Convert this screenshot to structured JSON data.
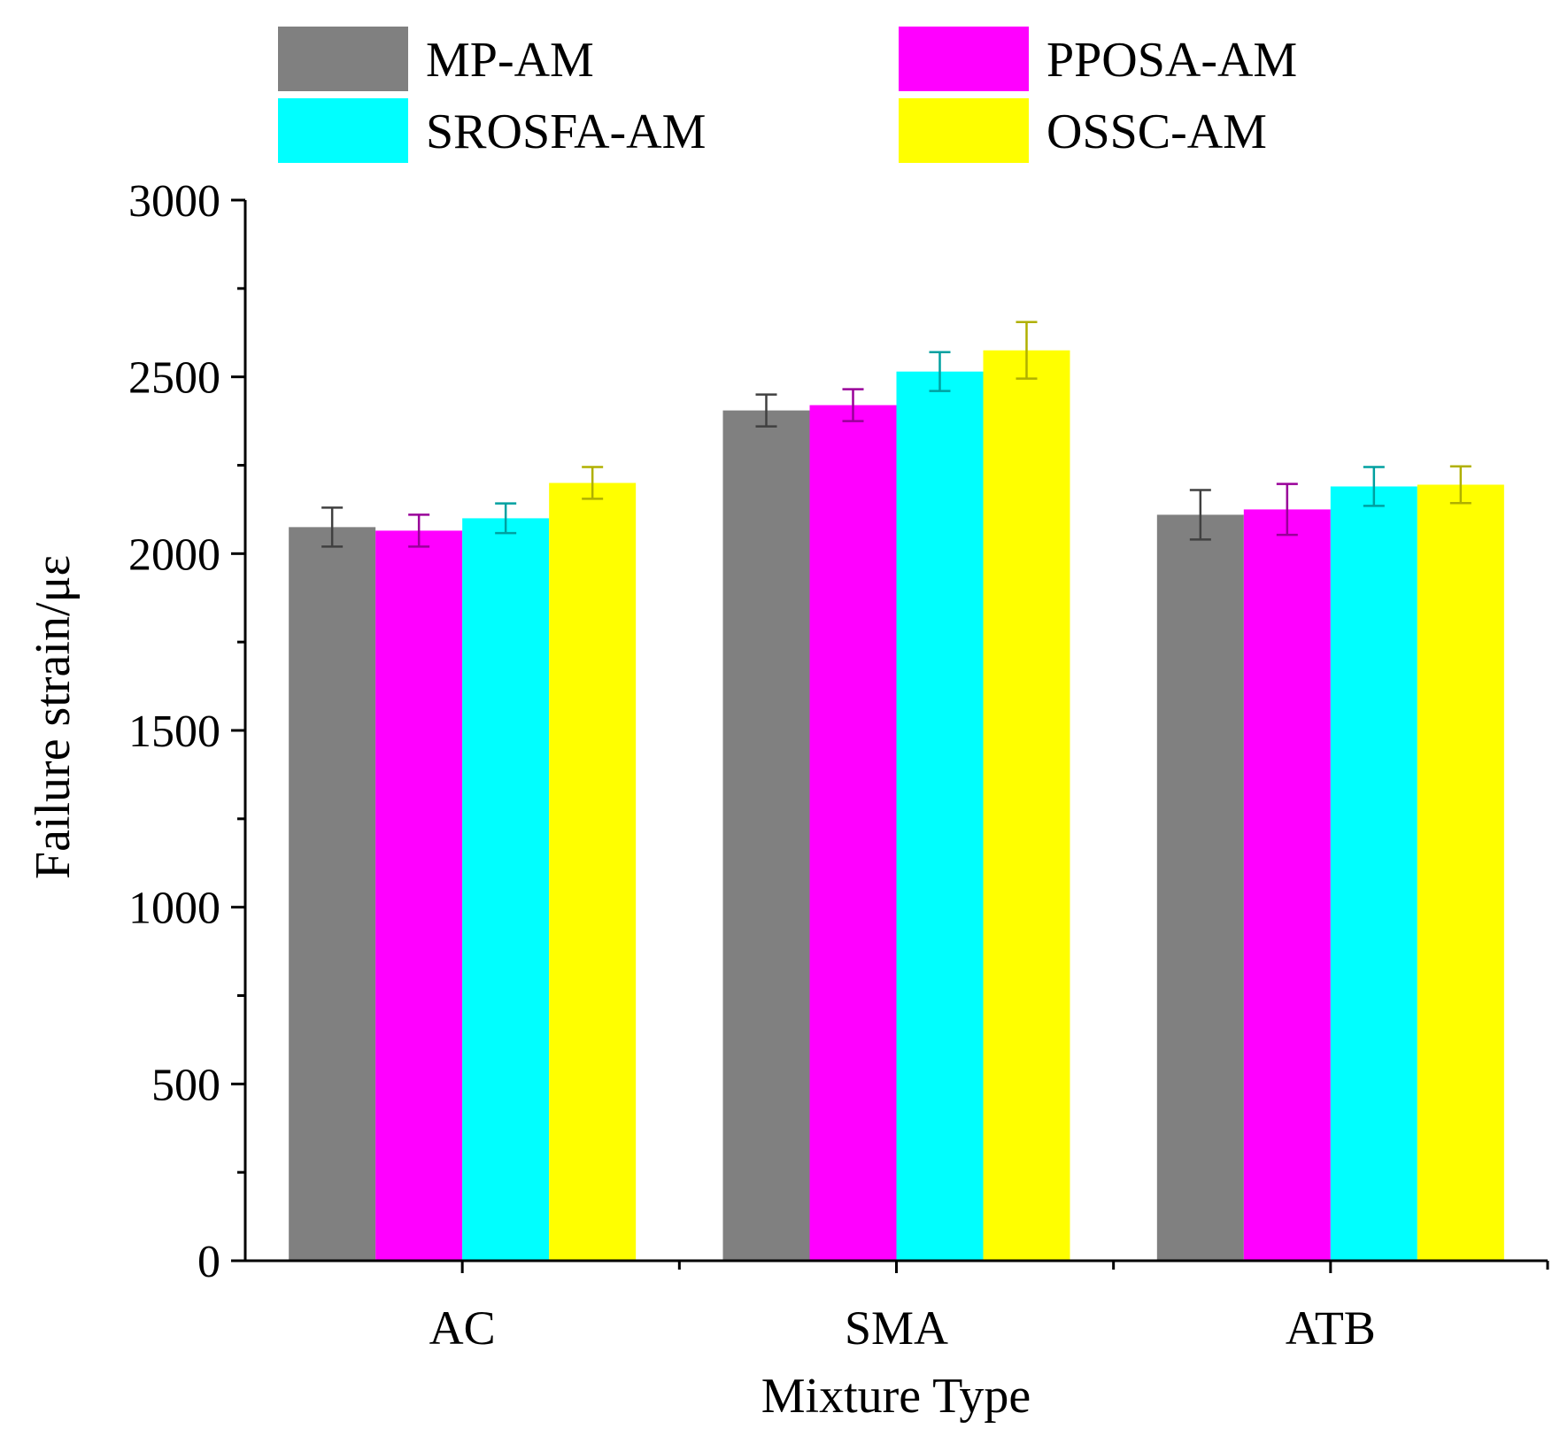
{
  "chart_data": {
    "type": "bar",
    "title": "",
    "xlabel": "Mixture Type",
    "ylabel": "Failure strain/με",
    "ylim": [
      0,
      3000
    ],
    "yticks": [
      0,
      500,
      1000,
      1500,
      2000,
      2500,
      3000
    ],
    "grid": false,
    "legend_position": "top",
    "categories": [
      "AC",
      "SMA",
      "ATB"
    ],
    "series": [
      {
        "name": "MP-AM",
        "color": "#808080",
        "error_color": "#404040",
        "values": [
          2075,
          2405,
          2110
        ],
        "errors": [
          55,
          45,
          70
        ]
      },
      {
        "name": "PPOSA-AM",
        "color": "#ff00ff",
        "error_color": "#990099",
        "values": [
          2065,
          2420,
          2125
        ],
        "errors": [
          45,
          45,
          72
        ]
      },
      {
        "name": "SROSFA-AM",
        "color": "#00ffff",
        "error_color": "#00a0a0",
        "values": [
          2100,
          2515,
          2190
        ],
        "errors": [
          42,
          55,
          55
        ]
      },
      {
        "name": "OSSC-AM",
        "color": "#ffff00",
        "error_color": "#b0b000",
        "values": [
          2200,
          2575,
          2195
        ],
        "errors": [
          45,
          80,
          52
        ]
      }
    ]
  }
}
